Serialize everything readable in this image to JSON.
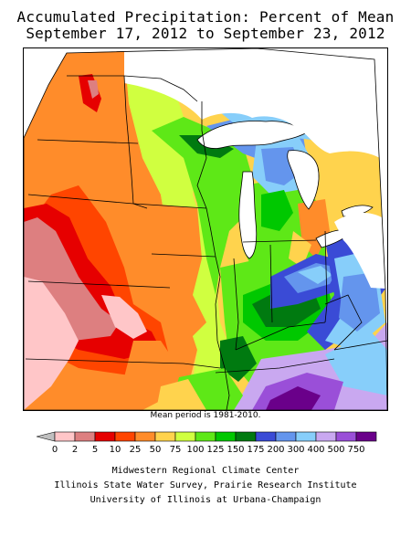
{
  "title": {
    "line1": "Accumulated Precipitation: Percent of Mean",
    "line2": "September 17, 2012 to September 23, 2012"
  },
  "mean_period": "Mean period is 1981-2010.",
  "legend": {
    "bins": [
      {
        "label": "0",
        "color": "#ffc6c8"
      },
      {
        "label": "2",
        "color": "#dd7f80"
      },
      {
        "label": "5",
        "color": "#e60000"
      },
      {
        "label": "10",
        "color": "#ff4500"
      },
      {
        "label": "25",
        "color": "#ff8c2a"
      },
      {
        "label": "50",
        "color": "#ffd34d"
      },
      {
        "label": "75",
        "color": "#d0ff40"
      },
      {
        "label": "100",
        "color": "#5ee817"
      },
      {
        "label": "125",
        "color": "#00c800"
      },
      {
        "label": "150",
        "color": "#007a10"
      },
      {
        "label": "175",
        "color": "#3a4bd6"
      },
      {
        "label": "200",
        "color": "#6495ed"
      },
      {
        "label": "300",
        "color": "#87cefa"
      },
      {
        "label": "400",
        "color": "#c9a8f0"
      },
      {
        "label": "500",
        "color": "#9a4fd8"
      },
      {
        "label": "750",
        "color": "#6a008a"
      }
    ],
    "end_arrow_color": "#bfbfbf"
  },
  "credits": {
    "line1": "Midwestern Regional Climate Center",
    "line2": "Illinois State Water Survey, Prairie Research Institute",
    "line3": "University of Illinois at Urbana-Champaign"
  }
}
